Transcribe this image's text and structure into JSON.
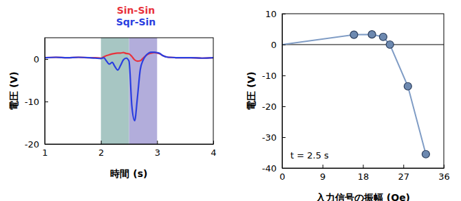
{
  "chart_data": [
    {
      "type": "line",
      "x_label": "時間 (s)",
      "y_label": "電圧 (V)",
      "xlim": [
        1,
        4
      ],
      "xticks": [
        1,
        2,
        3,
        4
      ],
      "ylim": [
        -20,
        5
      ],
      "yticks": [
        -20,
        -10,
        0
      ],
      "bands": [
        {
          "x0": 2,
          "x1": 2.5,
          "color": "#a7c6c3"
        },
        {
          "x0": 2.5,
          "x1": 3,
          "color": "#b2addb"
        }
      ],
      "x": [
        1,
        1.2,
        1.4,
        1.6,
        1.8,
        1.9,
        2.0,
        2.05,
        2.1,
        2.15,
        2.2,
        2.25,
        2.3,
        2.35,
        2.4,
        2.45,
        2.5,
        2.55,
        2.6,
        2.65,
        2.7,
        2.75,
        2.8,
        2.85,
        2.9,
        2.95,
        3.0,
        3.05,
        3.1,
        3.2,
        3.4,
        3.6,
        3.8,
        4.0
      ],
      "series": [
        {
          "name": "Sin-Sin",
          "color": "#e8323c",
          "values": [
            0.3,
            0.4,
            0.3,
            0.4,
            0.3,
            0.3,
            0.2,
            0.5,
            0.8,
            1.0,
            1.2,
            1.3,
            1.4,
            1.4,
            1.5,
            1.3,
            1.2,
            0.6,
            -0.2,
            -0.5,
            -0.4,
            0.2,
            0.8,
            1.2,
            1.4,
            1.5,
            1.4,
            1.2,
            0.8,
            0.4,
            0.3,
            0.3,
            0.2,
            0.3
          ]
        },
        {
          "name": "Sqr-Sin",
          "color": "#2a3ee0",
          "values": [
            0.3,
            0.4,
            0.3,
            0.4,
            0.3,
            0.2,
            0.1,
            0.3,
            -0.5,
            -1.2,
            -0.8,
            -1.8,
            -2.6,
            -1.5,
            -0.2,
            0.2,
            -0.5,
            -11,
            -14.5,
            -9,
            -2.5,
            -0.3,
            0.8,
            1.4,
            1.6,
            1.6,
            1.5,
            1.3,
            0.8,
            0.4,
            0.3,
            0.3,
            0.2,
            0.3
          ]
        }
      ]
    },
    {
      "type": "line",
      "x_label": "入力信号の振幅 (Oe)",
      "y_label": "電圧 (V)",
      "annotation": "t = 2.5 s",
      "xlim": [
        0,
        36
      ],
      "xticks": [
        0,
        9,
        18,
        27,
        36
      ],
      "ylim": [
        -40,
        10
      ],
      "yticks": [
        -40,
        -30,
        -20,
        -10,
        0,
        10
      ],
      "hline": 0,
      "series": [
        {
          "color": "#7f9cc5",
          "marker": "none",
          "x": [
            0,
            16
          ],
          "values": [
            0,
            3.2
          ]
        },
        {
          "color": "#7f9cc5",
          "marker": "circle",
          "x": [
            16,
            20,
            22.5,
            24,
            28,
            32
          ],
          "values": [
            3.2,
            3.3,
            2.5,
            0,
            -13.5,
            -35.5
          ]
        }
      ]
    }
  ]
}
